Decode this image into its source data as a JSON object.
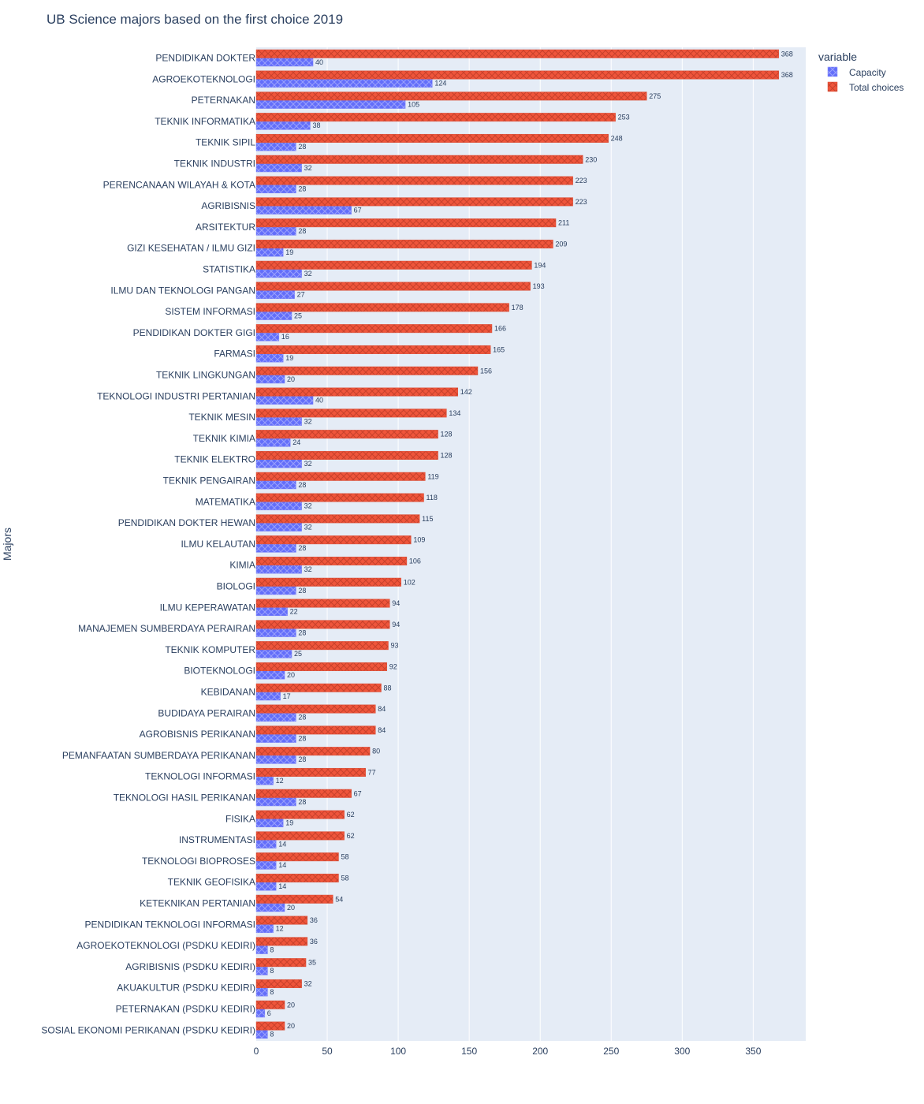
{
  "chart_data": {
    "type": "bar",
    "orientation": "horizontal",
    "title": "UB Science majors based on the first choice 2019",
    "ylabel": "Majors",
    "xlabel": "",
    "xlim": [
      0,
      387
    ],
    "xticks": [
      0,
      50,
      100,
      150,
      200,
      250,
      300,
      350
    ],
    "grid": true,
    "legend_title": "variable",
    "legend_position": "top-right",
    "categories": [
      "PENDIDIKAN DOKTER",
      "AGROEKOTEKNOLOGI",
      "PETERNAKAN",
      "TEKNIK INFORMATIKA",
      "TEKNIK SIPIL",
      "TEKNIK INDUSTRI",
      "PERENCANAAN WILAYAH & KOTA",
      "AGRIBISNIS",
      "ARSITEKTUR",
      "GIZI KESEHATAN / ILMU GIZI",
      "STATISTIKA",
      "ILMU DAN TEKNOLOGI PANGAN",
      "SISTEM INFORMASI",
      "PENDIDIKAN DOKTER GIGI",
      "FARMASI",
      "TEKNIK LINGKUNGAN",
      "TEKNOLOGI INDUSTRI PERTANIAN",
      "TEKNIK MESIN",
      "TEKNIK KIMIA",
      "TEKNIK ELEKTRO",
      "TEKNIK PENGAIRAN",
      "MATEMATIKA",
      "PENDIDIKAN DOKTER HEWAN",
      "ILMU KELAUTAN",
      "KIMIA",
      "BIOLOGI",
      "ILMU KEPERAWATAN",
      "MANAJEMEN SUMBERDAYA PERAIRAN",
      "TEKNIK KOMPUTER",
      "BIOTEKNOLOGI",
      "KEBIDANAN",
      "BUDIDAYA PERAIRAN",
      "AGROBISNIS PERIKANAN",
      "PEMANFAATAN SUMBERDAYA PERIKANAN",
      "TEKNOLOGI INFORMASI",
      "TEKNOLOGI HASIL PERIKANAN",
      "FISIKA",
      "INSTRUMENTASI",
      "TEKNOLOGI BIOPROSES",
      "TEKNIK GEOFISIKA",
      "KETEKNIKAN PERTANIAN",
      "PENDIDIKAN TEKNOLOGI INFORMASI",
      "AGROEKOTEKNOLOGI (PSDKU KEDIRI)",
      "AGRIBISNIS (PSDKU KEDIRI)",
      "AKUAKULTUR (PSDKU KEDIRI)",
      "PETERNAKAN (PSDKU KEDIRI)",
      "SOSIAL EKONOMI PERIKANAN (PSDKU KEDIRI)"
    ],
    "series": [
      {
        "name": "Capacity",
        "color": "#636efa",
        "values": [
          40,
          124,
          105,
          38,
          28,
          32,
          28,
          67,
          28,
          19,
          32,
          27,
          25,
          16,
          19,
          20,
          40,
          32,
          24,
          32,
          28,
          32,
          32,
          28,
          32,
          28,
          22,
          28,
          25,
          20,
          17,
          28,
          28,
          28,
          12,
          28,
          19,
          14,
          14,
          14,
          20,
          12,
          8,
          8,
          8,
          6,
          8
        ]
      },
      {
        "name": "Total choices",
        "color": "#ef553b",
        "values": [
          368,
          368,
          275,
          253,
          248,
          230,
          223,
          223,
          211,
          209,
          194,
          193,
          178,
          166,
          165,
          156,
          142,
          134,
          128,
          128,
          119,
          118,
          115,
          109,
          106,
          102,
          94,
          94,
          93,
          92,
          88,
          84,
          84,
          80,
          77,
          67,
          62,
          62,
          58,
          58,
          54,
          36,
          36,
          35,
          32,
          20,
          20
        ]
      }
    ]
  }
}
